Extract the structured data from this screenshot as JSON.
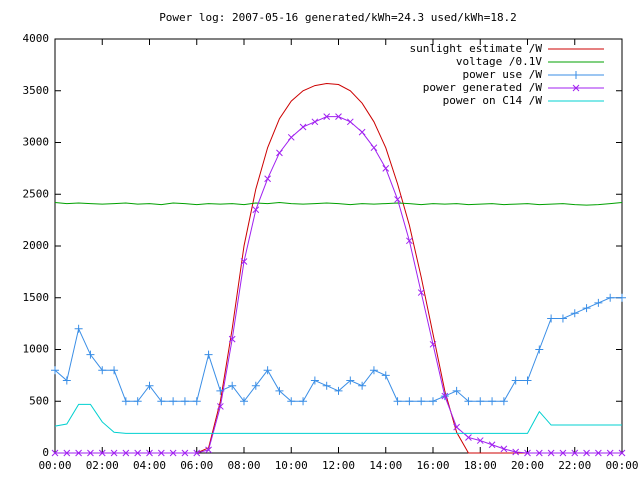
{
  "chart_data": {
    "type": "line",
    "title": "Power log: 2007-05-16 generated/kWh=24.3 used/kWh=18.2",
    "x": [
      0,
      0.5,
      1,
      1.5,
      2,
      2.5,
      3,
      3.5,
      4,
      4.5,
      5,
      5.5,
      6,
      6.5,
      7,
      7.5,
      8,
      8.5,
      9,
      9.5,
      10,
      10.5,
      11,
      11.5,
      12,
      12.5,
      13,
      13.5,
      14,
      14.5,
      15,
      15.5,
      16,
      16.5,
      17,
      17.5,
      18,
      18.5,
      19,
      19.5,
      20,
      20.5,
      21,
      21.5,
      22,
      22.5,
      23,
      23.5,
      24
    ],
    "series": [
      {
        "name": "sunlight estimate /W",
        "color": "#cc0000",
        "values": [
          0,
          0,
          0,
          0,
          0,
          0,
          0,
          0,
          0,
          0,
          0,
          0,
          0,
          50,
          500,
          1200,
          2000,
          2550,
          2950,
          3230,
          3400,
          3500,
          3550,
          3570,
          3560,
          3500,
          3380,
          3200,
          2950,
          2600,
          2200,
          1700,
          1150,
          600,
          200,
          0,
          0,
          0,
          0,
          0,
          0,
          0,
          0,
          0,
          0,
          0,
          0,
          0,
          0
        ]
      },
      {
        "name": "voltage /0.1V",
        "color": "#00a000",
        "values": [
          2420,
          2410,
          2415,
          2410,
          2405,
          2410,
          2415,
          2405,
          2410,
          2400,
          2415,
          2410,
          2400,
          2410,
          2405,
          2410,
          2400,
          2415,
          2410,
          2420,
          2410,
          2405,
          2410,
          2415,
          2410,
          2400,
          2410,
          2405,
          2410,
          2415,
          2410,
          2400,
          2410,
          2405,
          2410,
          2400,
          2405,
          2410,
          2400,
          2405,
          2410,
          2400,
          2405,
          2410,
          2400,
          2395,
          2400,
          2410,
          2420
        ]
      },
      {
        "name": "power use /W",
        "color": "#3a8ee6",
        "marker": "+",
        "values": [
          800,
          700,
          1200,
          950,
          800,
          800,
          500,
          500,
          650,
          500,
          500,
          500,
          500,
          950,
          600,
          650,
          500,
          650,
          800,
          600,
          500,
          500,
          700,
          650,
          600,
          700,
          650,
          800,
          750,
          500,
          500,
          500,
          500,
          550,
          600,
          500,
          500,
          500,
          500,
          700,
          700,
          1000,
          1300,
          1300,
          1350,
          1400,
          1450,
          1500,
          1500
        ]
      },
      {
        "name": "power generated /W",
        "color": "#a020f0",
        "marker": "x",
        "values": [
          0,
          0,
          0,
          0,
          0,
          0,
          0,
          0,
          0,
          0,
          0,
          0,
          0,
          30,
          450,
          1100,
          1850,
          2350,
          2650,
          2900,
          3050,
          3150,
          3200,
          3250,
          3250,
          3200,
          3100,
          2950,
          2750,
          2450,
          2050,
          1550,
          1050,
          550,
          250,
          150,
          120,
          80,
          40,
          10,
          0,
          0,
          0,
          0,
          0,
          0,
          0,
          0,
          0
        ]
      },
      {
        "name": "power on C14 /W",
        "color": "#00d0d0",
        "values": [
          260,
          280,
          470,
          470,
          300,
          200,
          190,
          190,
          190,
          190,
          190,
          190,
          190,
          190,
          190,
          190,
          190,
          190,
          190,
          190,
          190,
          190,
          190,
          190,
          190,
          190,
          190,
          190,
          190,
          190,
          190,
          190,
          190,
          190,
          190,
          190,
          190,
          190,
          190,
          190,
          190,
          400,
          270,
          270,
          270,
          270,
          270,
          270,
          270
        ]
      }
    ],
    "xlim": [
      0,
      24
    ],
    "xticks": [
      {
        "value": 0,
        "label": "00:00"
      },
      {
        "value": 2,
        "label": "02:00"
      },
      {
        "value": 4,
        "label": "04:00"
      },
      {
        "value": 6,
        "label": "06:00"
      },
      {
        "value": 8,
        "label": "08:00"
      },
      {
        "value": 10,
        "label": "10:00"
      },
      {
        "value": 12,
        "label": "12:00"
      },
      {
        "value": 14,
        "label": "14:00"
      },
      {
        "value": 16,
        "label": "16:00"
      },
      {
        "value": 18,
        "label": "18:00"
      },
      {
        "value": 20,
        "label": "20:00"
      },
      {
        "value": 22,
        "label": "22:00"
      },
      {
        "value": 24,
        "label": "00:00"
      }
    ],
    "ylim": [
      0,
      4000
    ],
    "yticks": [
      0,
      500,
      1000,
      1500,
      2000,
      2500,
      3000,
      3500,
      4000
    ],
    "grid": false,
    "legend": "top-right"
  }
}
